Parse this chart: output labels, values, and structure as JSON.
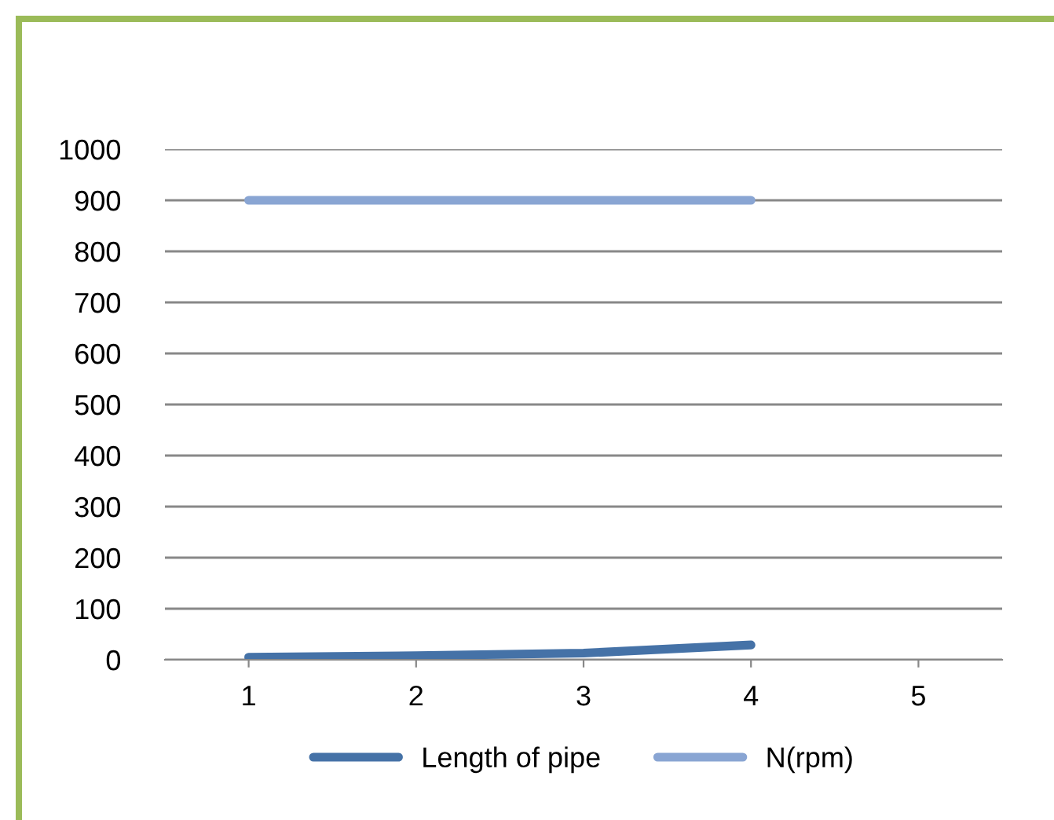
{
  "chart_data": {
    "type": "line",
    "categories": [
      "1",
      "2",
      "3",
      "4",
      "5"
    ],
    "series": [
      {
        "name": "Length of pipe",
        "color": "#4572a7",
        "values": [
          5,
          8,
          13,
          29,
          null
        ]
      },
      {
        "name": "N(rpm)",
        "color": "#89a5d3",
        "values": [
          900,
          900,
          900,
          900,
          null
        ]
      }
    ],
    "ylim": [
      0,
      1000
    ],
    "yticks": [
      0,
      100,
      200,
      300,
      400,
      500,
      600,
      700,
      800,
      900,
      1000
    ],
    "grid": "y",
    "legend": "bottom",
    "marker": "none",
    "line_style": "solid"
  }
}
